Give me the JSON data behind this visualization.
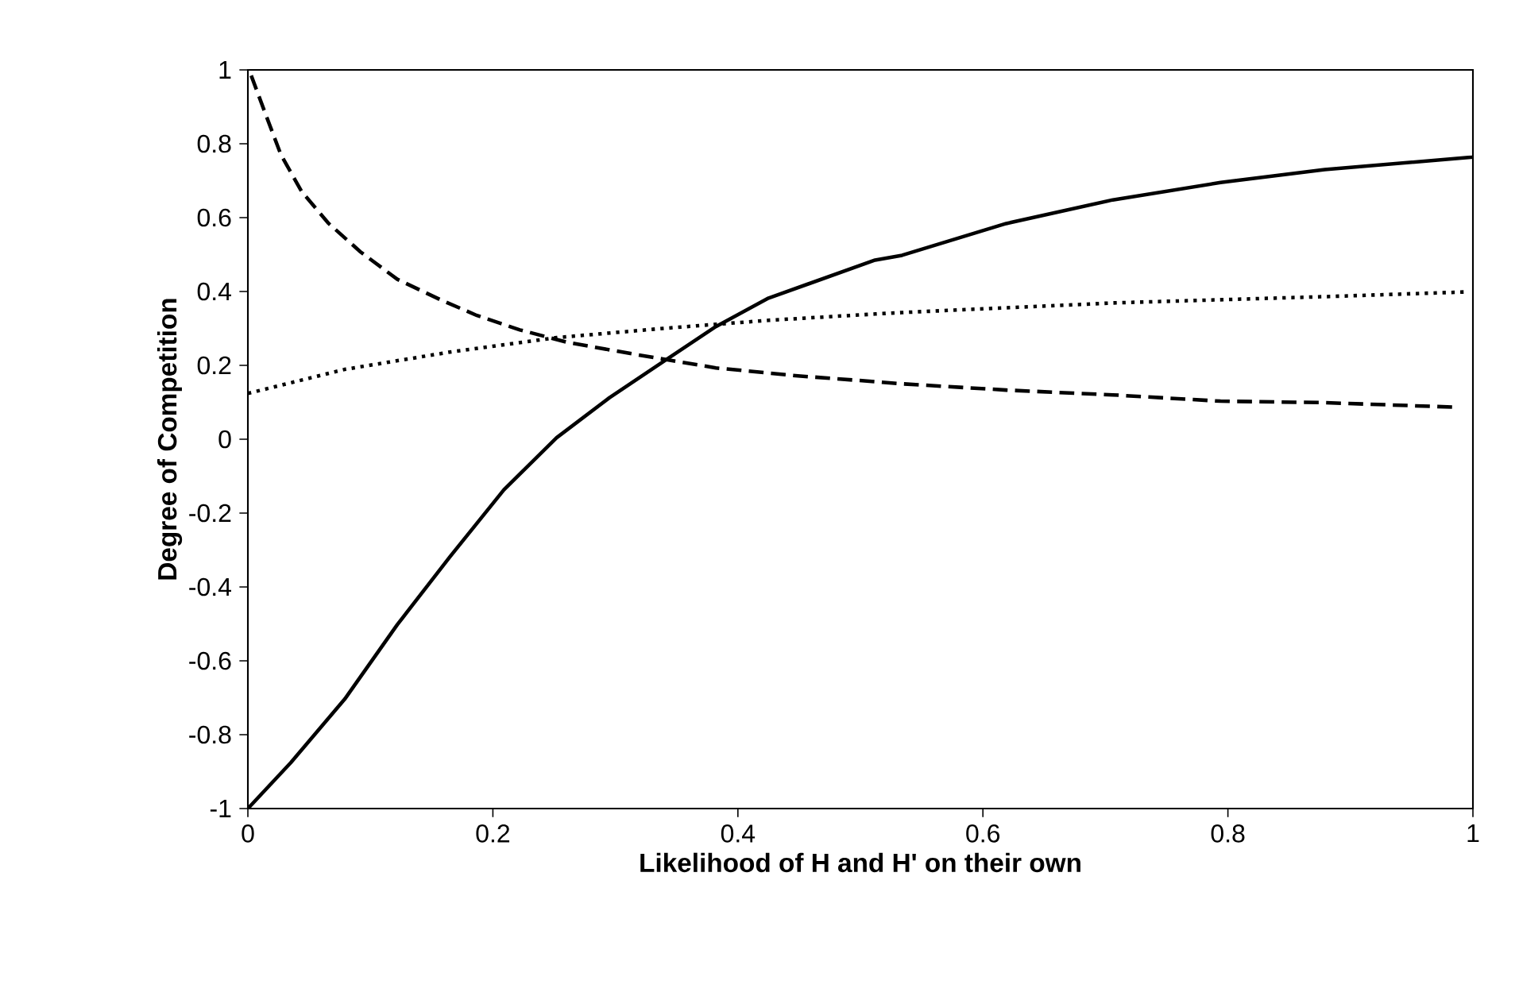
{
  "chart_data": {
    "type": "line",
    "xlabel": "Likelihood of H and H' on their own",
    "ylabel": "Degree of Competition",
    "xlim": [
      0,
      1
    ],
    "ylim": [
      -1,
      1
    ],
    "xticks": [
      0,
      0.2,
      0.4,
      0.6,
      0.8,
      1
    ],
    "yticks": [
      -1,
      -0.8,
      -0.6,
      -0.4,
      -0.2,
      0,
      0.2,
      0.4,
      0.6,
      0.8,
      1
    ],
    "grid": false,
    "marker": "none",
    "series": [
      {
        "color": "#000000",
        "line_style": "solid",
        "x": [
          0,
          0.035,
          0.079,
          0.122,
          0.165,
          0.209,
          0.252,
          0.295,
          0.339,
          0.382,
          0.425,
          0.512,
          0.534,
          0.619,
          0.706,
          0.794,
          0.879,
          1
        ],
        "values": [
          -1,
          -0.876,
          -0.704,
          -0.502,
          -0.318,
          -0.137,
          0.004,
          0.112,
          0.21,
          0.305,
          0.382,
          0.485,
          0.498,
          0.584,
          0.648,
          0.695,
          0.73,
          0.764
        ]
      },
      {
        "color": "#000000",
        "line_style": "dashed",
        "x": [
          0.001,
          0.014,
          0.027,
          0.044,
          0.066,
          0.092,
          0.122,
          0.157,
          0.187,
          0.222,
          0.261,
          0.321,
          0.382,
          0.447,
          0.499,
          0.534,
          0.619,
          0.706,
          0.794,
          0.879,
          0.983
        ],
        "values": [
          1,
          0.884,
          0.77,
          0.67,
          0.584,
          0.507,
          0.433,
          0.378,
          0.335,
          0.296,
          0.262,
          0.227,
          0.193,
          0.172,
          0.159,
          0.15,
          0.133,
          0.12,
          0.103,
          0.099,
          0.087
        ]
      },
      {
        "color": "#000000",
        "line_style": "dotted",
        "x": [
          0,
          0.079,
          0.165,
          0.252,
          0.339,
          0.425,
          0.512,
          0.534,
          0.706,
          0.879,
          0.996
        ],
        "values": [
          0.124,
          0.189,
          0.236,
          0.275,
          0.3,
          0.322,
          0.339,
          0.343,
          0.369,
          0.386,
          0.399
        ]
      }
    ]
  }
}
